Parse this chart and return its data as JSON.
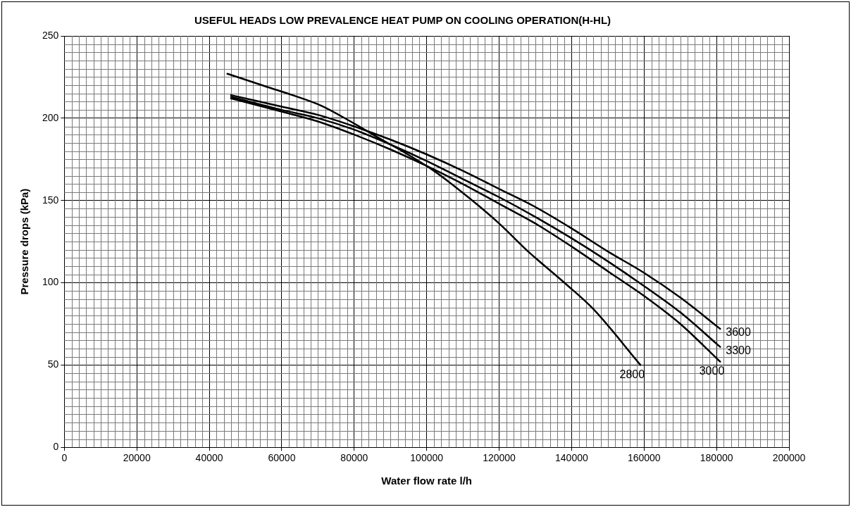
{
  "chart_data": {
    "type": "line",
    "title": "USEFUL HEADS LOW PREVALENCE HEAT PUMP ON COOLING OPERATION(H-HL)",
    "xlabel": "Water flow rate l/h",
    "ylabel": "Pressure drops (kPa)",
    "xlim": [
      0,
      200000
    ],
    "xticks": [
      0,
      20000,
      40000,
      60000,
      80000,
      100000,
      120000,
      140000,
      160000,
      180000,
      200000
    ],
    "ylim": [
      0,
      250
    ],
    "yticks": [
      0,
      50,
      100,
      150,
      200,
      250
    ],
    "grid": true,
    "legend": false,
    "marker": "none",
    "line_style": "solid",
    "series": [
      {
        "name": "3600",
        "color": "#000000",
        "x": [
          46000,
          60000,
          70000,
          80000,
          90000,
          100000,
          110000,
          120000,
          130000,
          140000,
          150000,
          160000,
          170000,
          181000
        ],
        "values": [
          214,
          207,
          202,
          195,
          187,
          178,
          168,
          157,
          146,
          133,
          119,
          106,
          91,
          72
        ]
      },
      {
        "name": "3300",
        "color": "#000000",
        "x": [
          46000,
          60000,
          70000,
          80000,
          90000,
          100000,
          110000,
          120000,
          130000,
          140000,
          150000,
          160000,
          170000,
          181000
        ],
        "values": [
          213,
          205,
          200,
          193,
          184,
          174,
          163,
          152,
          140,
          127,
          113,
          98,
          82,
          61
        ]
      },
      {
        "name": "3000",
        "color": "#000000",
        "x": [
          46000,
          60000,
          70000,
          80000,
          90000,
          100000,
          110000,
          120000,
          130000,
          140000,
          150000,
          160000,
          170000,
          181000
        ],
        "values": [
          212,
          204,
          198,
          190,
          181,
          171,
          160,
          148,
          136,
          122,
          107,
          92,
          75,
          52
        ]
      },
      {
        "name": "2800",
        "color": "#000000",
        "x": [
          45000,
          56000,
          63000,
          71000,
          79000,
          86000,
          94000,
          102000,
          112000,
          120000,
          128000,
          138000,
          146000,
          159000
        ],
        "values": [
          227,
          219,
          214,
          207.5,
          198,
          189,
          179,
          168,
          151,
          136,
          119,
          100,
          84,
          50
        ]
      }
    ]
  }
}
